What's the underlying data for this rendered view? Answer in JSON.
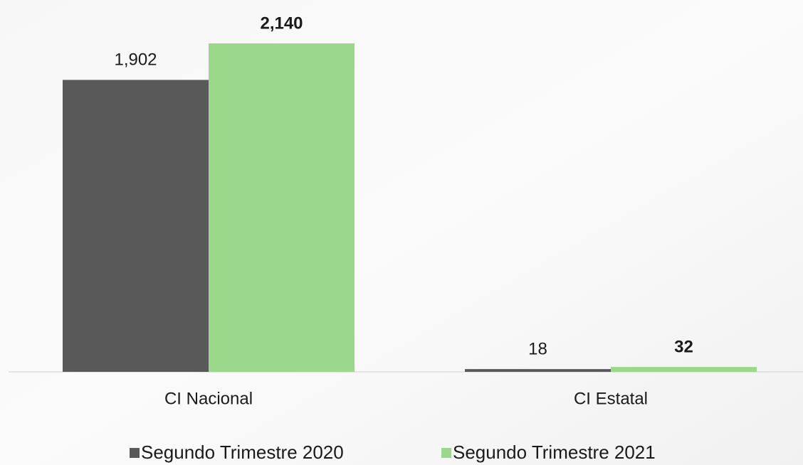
{
  "chart_data": {
    "type": "bar",
    "categories": [
      "CI Nacional",
      "CI Estatal"
    ],
    "series": [
      {
        "name": "Segundo Trimestre 2020",
        "color": "#595959",
        "values": [
          1902,
          18
        ],
        "value_labels": [
          "1,902",
          "18"
        ]
      },
      {
        "name": "Segundo Trimestre 2021",
        "color": "#9bd88c",
        "values": [
          2140,
          32
        ],
        "value_labels": [
          "2,140",
          "32"
        ]
      }
    ]
  }
}
